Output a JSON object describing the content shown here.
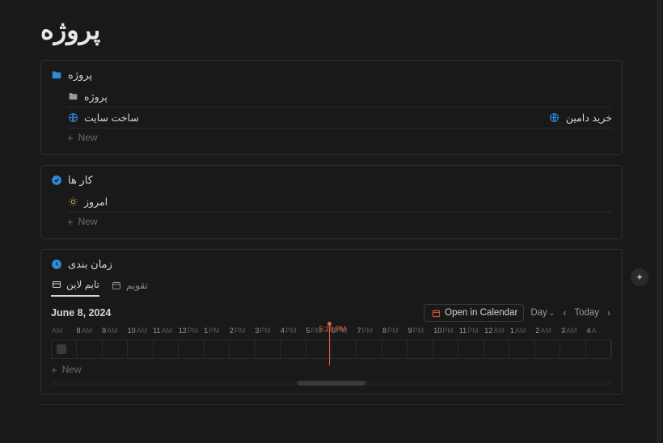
{
  "page": {
    "title": "پروژه"
  },
  "colors": {
    "bg": "#191919",
    "card_border": "#2f2f2f",
    "text": "#d4d4d4",
    "muted": "#6b6b6b",
    "accent_orange": "#e85d3d",
    "icon_blue": "#2e8ad8",
    "icon_check_blue": "#2e8ad8",
    "icon_clock_blue": "#2e8ad8"
  },
  "projects_card": {
    "title": "پروژه",
    "items": [
      {
        "icon": "folder",
        "label": "پروژه"
      },
      {
        "icon": "globe",
        "label_left": "ساخت سایت",
        "label_right": "خرید دامین",
        "right_icon": "globe"
      }
    ],
    "new_label": "New"
  },
  "tasks_card": {
    "title": "کار ها",
    "items": [
      {
        "icon": "sun",
        "label": "امروز"
      }
    ],
    "new_label": "New"
  },
  "timeline_card": {
    "title": "زمان بندی",
    "tabs": [
      {
        "id": "timeline",
        "label": "تایم لاین",
        "icon": "timeline",
        "active": true
      },
      {
        "id": "calendar",
        "label": "تقویم",
        "icon": "calendar",
        "active": false
      }
    ],
    "date": "June 8, 2024",
    "open_calendar_label": "Open in Calendar",
    "view_label": "Day",
    "today_label": "Today",
    "new_label": "New",
    "now_time": "5:29 PM",
    "now_position_pct": 49.5,
    "hours": [
      {
        "n": "",
        "ap": "AM"
      },
      {
        "n": "8",
        "ap": "AM"
      },
      {
        "n": "9",
        "ap": "AM"
      },
      {
        "n": "10",
        "ap": "AM"
      },
      {
        "n": "11",
        "ap": "AM"
      },
      {
        "n": "12",
        "ap": "PM"
      },
      {
        "n": "1",
        "ap": "PM"
      },
      {
        "n": "2",
        "ap": "PM"
      },
      {
        "n": "3",
        "ap": "PM"
      },
      {
        "n": "4",
        "ap": "PM"
      },
      {
        "n": "5",
        "ap": "PM"
      },
      {
        "n": "6",
        "ap": "PM"
      },
      {
        "n": "7",
        "ap": "PM"
      },
      {
        "n": "8",
        "ap": "PM"
      },
      {
        "n": "9",
        "ap": "PM"
      },
      {
        "n": "10",
        "ap": "PM"
      },
      {
        "n": "11",
        "ap": "PM"
      },
      {
        "n": "12",
        "ap": "AM"
      },
      {
        "n": "1",
        "ap": "AM"
      },
      {
        "n": "2",
        "ap": "AM"
      },
      {
        "n": "3",
        "ap": "AM"
      },
      {
        "n": "4",
        "ap": "A"
      }
    ],
    "scrollbar": {
      "thumb_left_pct": 44,
      "thumb_width_pct": 12
    }
  }
}
